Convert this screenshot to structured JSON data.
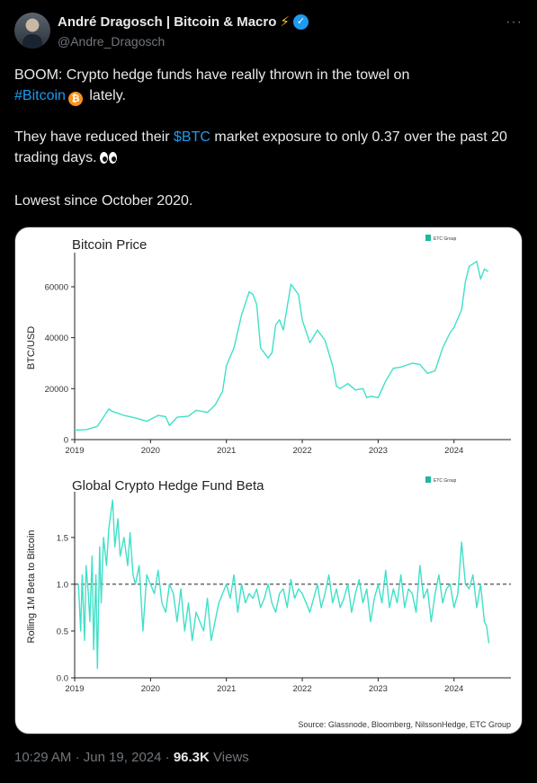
{
  "author": {
    "display_name": "André Dragosch | Bitcoin & Macro",
    "handle": "@Andre_Dragosch",
    "badge_icon": "lightning-bolt-icon",
    "verified_icon": "verified-badge-icon"
  },
  "tweet": {
    "line1_text": "BOOM: Crypto hedge funds have really thrown in the towel on",
    "hashtag": "#Bitcoin",
    "line1_end": "lately.",
    "line2_start": "They have reduced their",
    "cashtag": "$BTC",
    "line2_rest": "market exposure to only 0.37 over the past 20 trading days.",
    "line3": "Lowest since October 2020."
  },
  "meta": {
    "time": "10:29 AM",
    "sep1": "·",
    "date": "Jun 19, 2024",
    "sep2": "·",
    "views_count": "96.3K",
    "views_label": "Views"
  },
  "colors": {
    "line": "#40e0c8",
    "accent": "#1d9bf0",
    "background": "#000000",
    "card": "#ffffff"
  },
  "chart_data": [
    {
      "type": "line",
      "title": "Bitcoin Price",
      "logo_text": "ETC Group",
      "ylabel": "BTC/USD",
      "xlabel": "",
      "xlim": [
        2019.0,
        2024.75
      ],
      "ylim": [
        0,
        72000
      ],
      "xticks": [
        "2019",
        "2020",
        "2021",
        "2022",
        "2023",
        "2024"
      ],
      "yticks": [
        "0",
        "20000",
        "40000",
        "60000"
      ],
      "series": [
        {
          "x": [
            2019.0,
            2019.15,
            2019.3,
            2019.45,
            2019.5,
            2019.65,
            2019.8,
            2019.95,
            2020.1,
            2020.2,
            2020.25,
            2020.35,
            2020.5,
            2020.6,
            2020.75,
            2020.85,
            2020.95,
            2021.0,
            2021.1,
            2021.2,
            2021.3,
            2021.35,
            2021.4,
            2021.45,
            2021.55,
            2021.6,
            2021.65,
            2021.7,
            2021.75,
            2021.85,
            2021.95,
            2022.0,
            2022.1,
            2022.2,
            2022.3,
            2022.4,
            2022.45,
            2022.5,
            2022.6,
            2022.7,
            2022.8,
            2022.85,
            2022.9,
            2023.0,
            2023.1,
            2023.2,
            2023.3,
            2023.45,
            2023.55,
            2023.65,
            2023.75,
            2023.85,
            2023.95,
            2024.0,
            2024.1,
            2024.15,
            2024.2,
            2024.3,
            2024.35,
            2024.4,
            2024.45
          ],
          "y": [
            3700,
            3900,
            5200,
            12000,
            11000,
            9500,
            8500,
            7200,
            9500,
            9000,
            5500,
            8800,
            9200,
            11500,
            10700,
            13500,
            19000,
            29000,
            36000,
            49000,
            58000,
            57000,
            53000,
            36000,
            32000,
            34000,
            45000,
            47000,
            43000,
            61000,
            57000,
            47000,
            38000,
            43000,
            39000,
            29000,
            21000,
            20000,
            22000,
            19500,
            20000,
            16500,
            17000,
            16500,
            23000,
            28000,
            28500,
            30000,
            29500,
            26000,
            27000,
            36000,
            42000,
            44000,
            51000,
            62000,
            68000,
            70000,
            63000,
            67000,
            66000
          ]
        }
      ]
    },
    {
      "type": "line",
      "title": "Global Crypto Hedge Fund Beta",
      "logo_text": "ETC Group",
      "ylabel": "Rolling 1M Beta to Bitcoin",
      "xlabel": "",
      "xlim": [
        2019.0,
        2024.75
      ],
      "ylim": [
        0,
        1.95
      ],
      "xticks": [
        "2019",
        "2020",
        "2021",
        "2022",
        "2023",
        "2024"
      ],
      "yticks": [
        "0.0",
        "0.5",
        "1.0",
        "1.5"
      ],
      "reference_line": 1.0,
      "source": "Source: Glassnode, Bloomberg, NilssonHedge, ETC Group",
      "series": [
        {
          "x": [
            2019.05,
            2019.08,
            2019.1,
            2019.13,
            2019.15,
            2019.18,
            2019.2,
            2019.23,
            2019.25,
            2019.28,
            2019.3,
            2019.33,
            2019.35,
            2019.38,
            2019.42,
            2019.45,
            2019.5,
            2019.53,
            2019.57,
            2019.6,
            2019.65,
            2019.7,
            2019.73,
            2019.77,
            2019.8,
            2019.85,
            2019.9,
            2019.95,
            2020.0,
            2020.05,
            2020.1,
            2020.15,
            2020.2,
            2020.25,
            2020.3,
            2020.35,
            2020.4,
            2020.45,
            2020.5,
            2020.55,
            2020.6,
            2020.65,
            2020.7,
            2020.75,
            2020.8,
            2020.85,
            2020.9,
            2020.95,
            2021.0,
            2021.05,
            2021.1,
            2021.15,
            2021.2,
            2021.25,
            2021.3,
            2021.35,
            2021.4,
            2021.45,
            2021.5,
            2021.55,
            2021.6,
            2021.65,
            2021.7,
            2021.75,
            2021.8,
            2021.85,
            2021.9,
            2021.95,
            2022.0,
            2022.05,
            2022.1,
            2022.15,
            2022.2,
            2022.25,
            2022.3,
            2022.35,
            2022.4,
            2022.45,
            2022.5,
            2022.55,
            2022.6,
            2022.65,
            2022.7,
            2022.75,
            2022.8,
            2022.85,
            2022.9,
            2022.95,
            2023.0,
            2023.05,
            2023.1,
            2023.15,
            2023.2,
            2023.25,
            2023.3,
            2023.35,
            2023.4,
            2023.45,
            2023.5,
            2023.55,
            2023.6,
            2023.65,
            2023.7,
            2023.75,
            2023.8,
            2023.85,
            2023.9,
            2023.95,
            2024.0,
            2024.05,
            2024.1,
            2024.15,
            2024.2,
            2024.25,
            2024.3,
            2024.35,
            2024.4,
            2024.43,
            2024.46
          ],
          "y": [
            1.0,
            0.5,
            1.1,
            0.4,
            1.2,
            0.9,
            0.6,
            1.3,
            0.3,
            1.1,
            0.1,
            1.4,
            0.8,
            1.5,
            1.2,
            1.6,
            1.9,
            1.4,
            1.7,
            1.3,
            1.5,
            1.2,
            1.55,
            1.1,
            1.0,
            1.2,
            0.5,
            1.1,
            1.0,
            0.9,
            1.15,
            0.8,
            0.7,
            1.0,
            0.9,
            0.6,
            0.95,
            0.5,
            0.8,
            0.4,
            0.7,
            0.6,
            0.5,
            0.85,
            0.4,
            0.6,
            0.8,
            0.9,
            1.0,
            0.85,
            1.1,
            0.7,
            1.0,
            0.8,
            0.9,
            0.85,
            0.95,
            0.75,
            0.85,
            1.0,
            0.8,
            0.7,
            0.9,
            0.95,
            0.75,
            1.05,
            0.85,
            0.95,
            0.9,
            0.8,
            0.7,
            0.85,
            1.0,
            0.75,
            0.9,
            1.1,
            0.8,
            0.95,
            0.75,
            0.85,
            1.0,
            0.7,
            0.9,
            1.05,
            0.8,
            0.95,
            0.6,
            0.85,
            1.0,
            0.8,
            1.15,
            0.75,
            0.95,
            0.8,
            1.1,
            0.75,
            0.95,
            0.9,
            0.7,
            1.2,
            0.85,
            0.95,
            0.6,
            0.9,
            1.1,
            0.8,
            0.95,
            1.0,
            0.75,
            0.9,
            1.45,
            1.0,
            0.95,
            1.1,
            0.75,
            1.0,
            0.6,
            0.55,
            0.37
          ]
        }
      ]
    }
  ]
}
